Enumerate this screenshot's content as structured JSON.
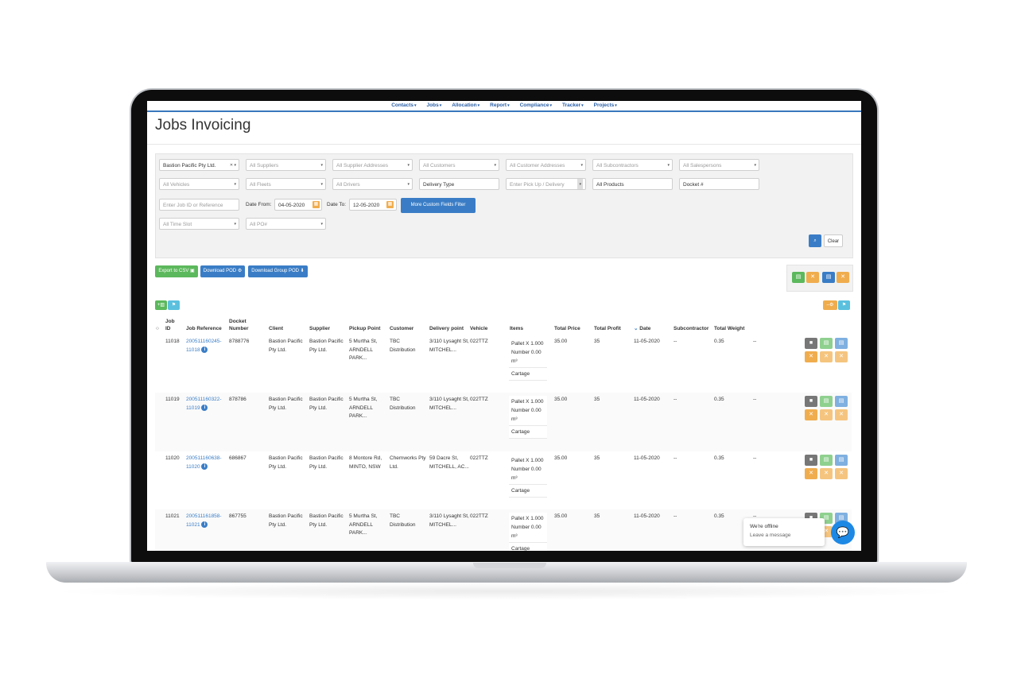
{
  "nav": [
    {
      "label": "Contacts"
    },
    {
      "label": "Jobs"
    },
    {
      "label": "Allocation"
    },
    {
      "label": "Report"
    },
    {
      "label": "Compliance"
    },
    {
      "label": "Tracker"
    },
    {
      "label": "Projects"
    }
  ],
  "page": {
    "title": "Jobs Invoicing"
  },
  "filters": {
    "client": "Bastion Pacific Pty Ltd.",
    "suppliers": "All Suppliers",
    "supplier_addresses": "All Supplier Addresses",
    "customers": "All Customers",
    "customer_addresses": "All Customer Addresses",
    "subcontractors": "All Subcontractors",
    "salespersons": "All Salespersons",
    "vehicles": "All Vehicles",
    "fleets": "All Fleets",
    "drivers": "All Drivers",
    "delivery_type": "Delivery Type",
    "pickup_delivery": "Enter Pick Up / Delivery",
    "products": "All Products",
    "docket": "Docket #",
    "job_ref_placeholder": "Enter Job ID or Reference",
    "date_from_label": "Date From:",
    "date_from": "04-05-2020",
    "date_to_label": "Date To:",
    "date_to": "12-05-2020",
    "custom_fields_button": "More Custom Fields Filter",
    "time_slot": "All Time Slot",
    "po": "All PO#",
    "clear_label": "Clear"
  },
  "toolbar": {
    "export_csv": "Export to CSV",
    "download_pod": "Download POD",
    "download_group_pod": "Download Group POD"
  },
  "table": {
    "headers": {
      "job_id": "Job ID",
      "job_reference": "Job Reference",
      "docket_number": "Docket Number",
      "client": "Client",
      "supplier": "Supplier",
      "pickup_point": "Pickup Point",
      "customer": "Customer",
      "delivery_point": "Delivery point",
      "vehicle": "Vehicle",
      "items": "Items",
      "total_price": "Total Price",
      "total_profit": "Total Profit",
      "date": "Date",
      "subcontractor": "Subcontractor",
      "total_weight": "Total Weight"
    },
    "rows": [
      {
        "job_id": "11018",
        "ref_a": "200511160245-",
        "ref_b": "11018",
        "docket": "8788776",
        "client": "Bastion Pacific Pty Ltd.",
        "supplier": "Bastion Pacific Pty Ltd.",
        "pickup": "5 Murtha St, ARNDELL PARK...",
        "customer": "TBC Distribution",
        "delivery": "3/110 Lysaght St, MITCHEL...",
        "vehicle": "022TTZ",
        "item_1": "Pallet X 1.000 Number 0.00 m³",
        "item_2": "Cartage",
        "price": "35.00",
        "profit": "35",
        "date": "11-05-2020",
        "subcontractor": "--",
        "weight": "0.35",
        "extra": "--"
      },
      {
        "job_id": "11019",
        "ref_a": "200511160322-",
        "ref_b": "11019",
        "docket": "878786",
        "client": "Bastion Pacific Pty Ltd.",
        "supplier": "Bastion Pacific Pty Ltd.",
        "pickup": "5 Murtha St, ARNDELL PARK...",
        "customer": "TBC Distribution",
        "delivery": "3/110 Lysaght St, MITCHEL...",
        "vehicle": "022TTZ",
        "item_1": "Pallet X 1.000 Number 0.00 m³",
        "item_2": "Cartage",
        "price": "35.00",
        "profit": "35",
        "date": "11-05-2020",
        "subcontractor": "--",
        "weight": "0.35",
        "extra": "--"
      },
      {
        "job_id": "11020",
        "ref_a": "200511160638-",
        "ref_b": "11020",
        "docket": "686867",
        "client": "Bastion Pacific Pty Ltd.",
        "supplier": "Bastion Pacific Pty Ltd.",
        "pickup": "8 Montore Rd, MINTO, NSW",
        "customer": "Chemworks Pty Ltd.",
        "delivery": "59 Dacre St, MITCHELL, AC...",
        "vehicle": "022TTZ",
        "item_1": "Pallet X 1.000 Number 0.00 m³",
        "item_2": "Cartage",
        "price": "35.00",
        "profit": "35",
        "date": "11-05-2020",
        "subcontractor": "--",
        "weight": "0.35",
        "extra": "--"
      },
      {
        "job_id": "11021",
        "ref_a": "200511161858-",
        "ref_b": "11021",
        "docket": "867755",
        "client": "Bastion Pacific Pty Ltd.",
        "supplier": "Bastion Pacific Pty Ltd.",
        "pickup": "5 Murtha St, ARNDELL PARK...",
        "customer": "TBC Distribution",
        "delivery": "3/110 Lysaght St, MITCHEL...",
        "vehicle": "022TTZ",
        "item_1": "Pallet X 1.000 Number 0.00 m³",
        "item_2": "Cartage",
        "price": "35.00",
        "profit": "35",
        "date": "11-05-2020",
        "subcontractor": "--",
        "weight": "0.35",
        "extra": "--"
      }
    ]
  },
  "chat": {
    "status": "We're offline",
    "action": "Leave a message"
  },
  "colors": {
    "primary": "#3a7dc6",
    "success": "#5cb85c",
    "warning": "#f0ad4e",
    "info": "#5bc0de"
  }
}
